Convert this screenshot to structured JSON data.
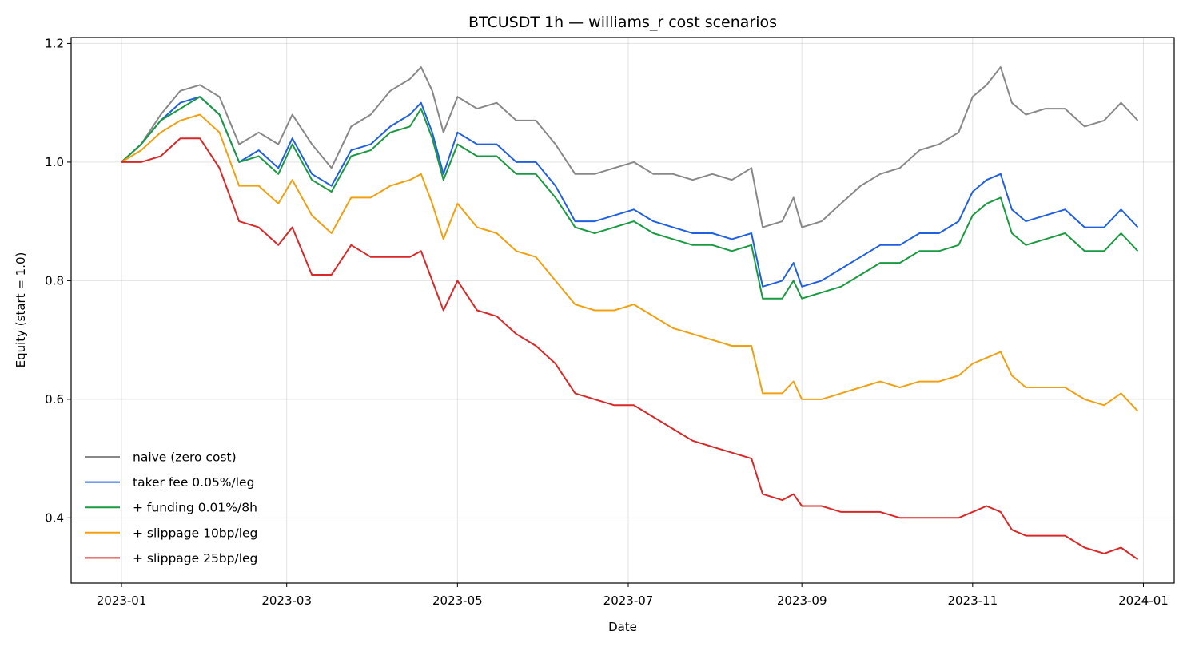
{
  "chart_data": {
    "type": "line",
    "title": "BTCUSDT 1h — williams_r cost scenarios",
    "xlabel": "Date",
    "ylabel": "Equity (start = 1.0)",
    "x_axis": {
      "type": "date",
      "range": [
        "2022-12-14",
        "2024-01-12"
      ],
      "ticks": [
        "2023-01",
        "2023-03",
        "2023-05",
        "2023-07",
        "2023-09",
        "2023-11",
        "2024-01"
      ]
    },
    "y_axis": {
      "range": [
        0.29,
        1.21
      ],
      "ticks": [
        0.4,
        0.6,
        0.8,
        1.0,
        1.2
      ],
      "tick_labels": [
        "0.4",
        "0.6",
        "0.8",
        "1.0",
        "1.2"
      ]
    },
    "grid": true,
    "legend_position": "lower-left",
    "x": [
      "2023-01-01",
      "2023-01-08",
      "2023-01-15",
      "2023-01-22",
      "2023-01-29",
      "2023-02-05",
      "2023-02-12",
      "2023-02-19",
      "2023-02-26",
      "2023-03-03",
      "2023-03-10",
      "2023-03-17",
      "2023-03-24",
      "2023-03-31",
      "2023-04-07",
      "2023-04-14",
      "2023-04-18",
      "2023-04-22",
      "2023-04-26",
      "2023-05-01",
      "2023-05-08",
      "2023-05-15",
      "2023-05-22",
      "2023-05-29",
      "2023-06-05",
      "2023-06-12",
      "2023-06-19",
      "2023-06-26",
      "2023-07-03",
      "2023-07-10",
      "2023-07-17",
      "2023-07-24",
      "2023-07-31",
      "2023-08-07",
      "2023-08-14",
      "2023-08-18",
      "2023-08-25",
      "2023-08-29",
      "2023-09-01",
      "2023-09-08",
      "2023-09-15",
      "2023-09-22",
      "2023-09-29",
      "2023-10-06",
      "2023-10-13",
      "2023-10-20",
      "2023-10-27",
      "2023-11-01",
      "2023-11-06",
      "2023-11-11",
      "2023-11-15",
      "2023-11-20",
      "2023-11-27",
      "2023-12-04",
      "2023-12-11",
      "2023-12-18",
      "2023-12-24",
      "2023-12-30"
    ],
    "series": [
      {
        "name": "naive (zero cost)",
        "color": "#888888",
        "values": [
          1.0,
          1.03,
          1.08,
          1.12,
          1.13,
          1.11,
          1.03,
          1.05,
          1.03,
          1.08,
          1.03,
          0.99,
          1.06,
          1.08,
          1.12,
          1.14,
          1.16,
          1.12,
          1.05,
          1.11,
          1.09,
          1.1,
          1.07,
          1.07,
          1.03,
          0.98,
          0.98,
          0.99,
          1.0,
          0.98,
          0.98,
          0.97,
          0.98,
          0.97,
          0.99,
          0.89,
          0.9,
          0.94,
          0.89,
          0.9,
          0.93,
          0.96,
          0.98,
          0.99,
          1.02,
          1.03,
          1.05,
          1.11,
          1.13,
          1.16,
          1.1,
          1.08,
          1.09,
          1.09,
          1.06,
          1.07,
          1.1,
          1.07
        ]
      },
      {
        "name": "taker fee 0.05%/leg",
        "color": "#2060e0",
        "values": [
          1.0,
          1.03,
          1.07,
          1.1,
          1.11,
          1.08,
          1.0,
          1.02,
          0.99,
          1.04,
          0.98,
          0.96,
          1.02,
          1.03,
          1.06,
          1.08,
          1.1,
          1.05,
          0.98,
          1.05,
          1.03,
          1.03,
          1.0,
          1.0,
          0.96,
          0.9,
          0.9,
          0.91,
          0.92,
          0.9,
          0.89,
          0.88,
          0.88,
          0.87,
          0.88,
          0.79,
          0.8,
          0.83,
          0.79,
          0.8,
          0.82,
          0.84,
          0.86,
          0.86,
          0.88,
          0.88,
          0.9,
          0.95,
          0.97,
          0.98,
          0.92,
          0.9,
          0.91,
          0.92,
          0.89,
          0.89,
          0.92,
          0.89
        ]
      },
      {
        "name": "+ funding 0.01%/8h",
        "color": "#1a9a40",
        "values": [
          1.0,
          1.03,
          1.07,
          1.09,
          1.11,
          1.08,
          1.0,
          1.01,
          0.98,
          1.03,
          0.97,
          0.95,
          1.01,
          1.02,
          1.05,
          1.06,
          1.09,
          1.04,
          0.97,
          1.03,
          1.01,
          1.01,
          0.98,
          0.98,
          0.94,
          0.89,
          0.88,
          0.89,
          0.9,
          0.88,
          0.87,
          0.86,
          0.86,
          0.85,
          0.86,
          0.77,
          0.77,
          0.8,
          0.77,
          0.78,
          0.79,
          0.81,
          0.83,
          0.83,
          0.85,
          0.85,
          0.86,
          0.91,
          0.93,
          0.94,
          0.88,
          0.86,
          0.87,
          0.88,
          0.85,
          0.85,
          0.88,
          0.85
        ]
      },
      {
        "name": "+ slippage 10bp/leg",
        "color": "#f0a010",
        "values": [
          1.0,
          1.02,
          1.05,
          1.07,
          1.08,
          1.05,
          0.96,
          0.96,
          0.93,
          0.97,
          0.91,
          0.88,
          0.94,
          0.94,
          0.96,
          0.97,
          0.98,
          0.93,
          0.87,
          0.93,
          0.89,
          0.88,
          0.85,
          0.84,
          0.8,
          0.76,
          0.75,
          0.75,
          0.76,
          0.74,
          0.72,
          0.71,
          0.7,
          0.69,
          0.69,
          0.61,
          0.61,
          0.63,
          0.6,
          0.6,
          0.61,
          0.62,
          0.63,
          0.62,
          0.63,
          0.63,
          0.64,
          0.66,
          0.67,
          0.68,
          0.64,
          0.62,
          0.62,
          0.62,
          0.6,
          0.59,
          0.61,
          0.58
        ]
      },
      {
        "name": "+ slippage 25bp/leg",
        "color": "#d82828",
        "values": [
          1.0,
          1.0,
          1.01,
          1.04,
          1.04,
          0.99,
          0.9,
          0.89,
          0.86,
          0.89,
          0.81,
          0.81,
          0.86,
          0.84,
          0.84,
          0.84,
          0.85,
          0.8,
          0.75,
          0.8,
          0.75,
          0.74,
          0.71,
          0.69,
          0.66,
          0.61,
          0.6,
          0.59,
          0.59,
          0.57,
          0.55,
          0.53,
          0.52,
          0.51,
          0.5,
          0.44,
          0.43,
          0.44,
          0.42,
          0.42,
          0.41,
          0.41,
          0.41,
          0.4,
          0.4,
          0.4,
          0.4,
          0.41,
          0.42,
          0.41,
          0.38,
          0.37,
          0.37,
          0.37,
          0.35,
          0.34,
          0.35,
          0.33
        ]
      }
    ]
  }
}
